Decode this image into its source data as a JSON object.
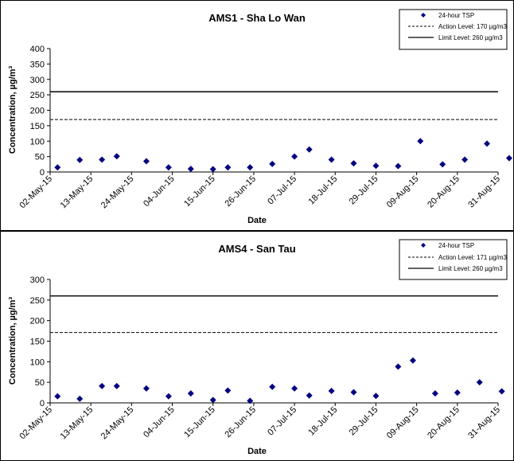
{
  "chart_data": [
    {
      "type": "scatter",
      "title": "AMS1 - Sha Lo Wan",
      "xlabel": "Date",
      "ylabel": "Concentration, µg/m³",
      "ylim": [
        0,
        400
      ],
      "yticks": [
        0,
        50,
        100,
        150,
        200,
        250,
        300,
        350,
        400
      ],
      "xticks": [
        "02-May-15",
        "13-May-15",
        "24-May-15",
        "04-Jun-15",
        "15-Jun-15",
        "26-Jun-15",
        "07-Jul-15",
        "18-Jul-15",
        "29-Jul-15",
        "09-Aug-15",
        "20-Aug-15",
        "31-Aug-15"
      ],
      "legend_position": "top-right",
      "legend": [
        "24-hour TSP",
        "Action Level: 170 µg/m3",
        "Limit Level: 260 µg/m3"
      ],
      "marker_color": "#000080",
      "series": [
        {
          "name": "24-hour TSP",
          "x": [
            "04-May-15",
            "10-May-15",
            "16-May-15",
            "20-May-15",
            "28-May-15",
            "03-Jun-15",
            "09-Jun-15",
            "15-Jun-15",
            "19-Jun-15",
            "25-Jun-15",
            "01-Jul-15",
            "07-Jul-15",
            "11-Jul-15",
            "17-Jul-15",
            "23-Jul-15",
            "29-Jul-15",
            "04-Aug-15",
            "10-Aug-15",
            "16-Aug-15",
            "22-Aug-15",
            "28-Aug-15",
            "03-Sep-15"
          ],
          "y": [
            15,
            39,
            40,
            51,
            35,
            15,
            10,
            9,
            15,
            15,
            26,
            50,
            73,
            40,
            28,
            20,
            19,
            100,
            25,
            40,
            92,
            45
          ]
        }
      ],
      "reference_lines": [
        {
          "name": "Action Level: 170 µg/m3",
          "y": 170,
          "style": "dashed"
        },
        {
          "name": "Limit Level: 260 µg/m3",
          "y": 260,
          "style": "solid"
        }
      ]
    },
    {
      "type": "scatter",
      "title": "AMS4 - San Tau",
      "xlabel": "Date",
      "ylabel": "Concentration, µg/m³",
      "ylim": [
        0,
        300
      ],
      "yticks": [
        0,
        50,
        100,
        150,
        200,
        250,
        300
      ],
      "xticks": [
        "02-May-15",
        "13-May-15",
        "24-May-15",
        "04-Jun-15",
        "15-Jun-15",
        "26-Jun-15",
        "07-Jul-15",
        "18-Jul-15",
        "29-Jul-15",
        "09-Aug-15",
        "20-Aug-15",
        "31-Aug-15"
      ],
      "legend_position": "top-right",
      "legend": [
        "24-hour TSP",
        "Action Level: 171 µg/m3",
        "Limit Level: 260 µg/m3"
      ],
      "marker_color": "#000080",
      "series": [
        {
          "name": "24-hour TSP",
          "x": [
            "04-May-15",
            "10-May-15",
            "16-May-15",
            "20-May-15",
            "28-May-15",
            "03-Jun-15",
            "09-Jun-15",
            "15-Jun-15",
            "19-Jun-15",
            "25-Jun-15",
            "01-Jul-15",
            "07-Jul-15",
            "11-Jul-15",
            "17-Jul-15",
            "23-Jul-15",
            "29-Jul-15",
            "04-Aug-15",
            "08-Aug-15",
            "14-Aug-15",
            "20-Aug-15",
            "26-Aug-15",
            "01-Sep-15"
          ],
          "y": [
            16,
            10,
            41,
            41,
            35,
            16,
            23,
            7,
            30,
            5,
            39,
            35,
            18,
            29,
            26,
            17,
            88,
            103,
            23,
            25,
            50,
            28
          ]
        }
      ],
      "reference_lines": [
        {
          "name": "Action Level: 171 µg/m3",
          "y": 171,
          "style": "dashed"
        },
        {
          "name": "Limit Level: 260 µg/m3",
          "y": 260,
          "style": "solid"
        }
      ]
    }
  ]
}
